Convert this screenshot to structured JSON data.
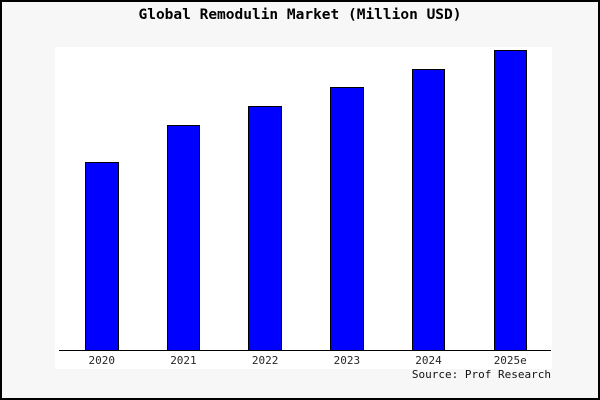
{
  "window": {
    "background_color": "#f7f7f7",
    "border_color": "#000000",
    "plot_background_color": "#ffffff"
  },
  "header": {
    "title": "Global Remodulin Market (Million USD)"
  },
  "footer": {
    "source": "Source: Prof Research"
  },
  "chart_data": {
    "type": "bar",
    "title": "Global Remodulin Market (Million USD)",
    "categories": [
      "2020",
      "2021",
      "2022",
      "2023",
      "2024",
      "2025e"
    ],
    "values": [
      62.2,
      74.3,
      80.6,
      86.8,
      92.8,
      99.0
    ],
    "values_unit": "percent_of_plot_height",
    "value_labels_shown": false,
    "xlabel": "",
    "ylabel": "",
    "y_axis_visible": false,
    "gridlines": false,
    "legend": false,
    "bar_fill": "#0000ff",
    "bar_edge": "#000000",
    "source_note": "Source: Prof Research"
  }
}
